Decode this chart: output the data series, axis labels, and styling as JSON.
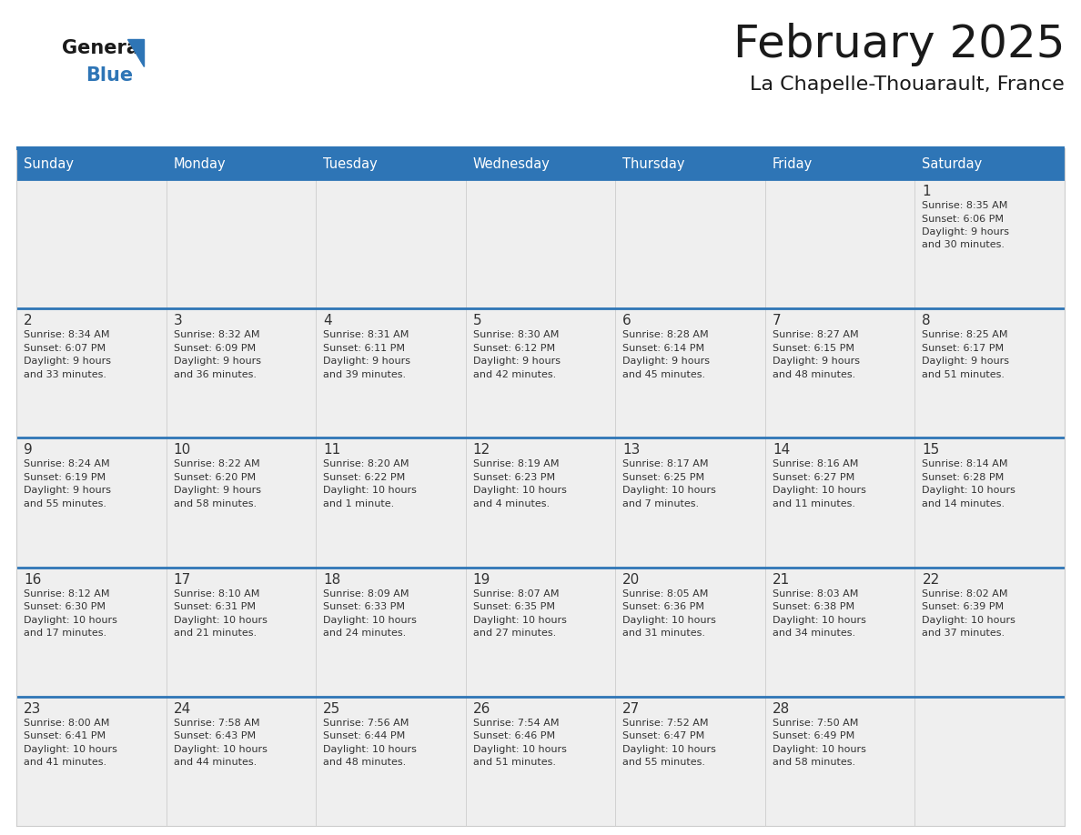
{
  "title": "February 2025",
  "subtitle": "La Chapelle-Thouarault, France",
  "days_of_week": [
    "Sunday",
    "Monday",
    "Tuesday",
    "Wednesday",
    "Thursday",
    "Friday",
    "Saturday"
  ],
  "header_bg": "#2E75B6",
  "header_text": "#FFFFFF",
  "cell_bg": "#EFEFEF",
  "cell_border_color": "#AAAAAA",
  "week_separator_color": "#2E75B6",
  "day_num_color": "#333333",
  "info_text_color": "#333333",
  "title_color": "#1A1A1A",
  "subtitle_color": "#1A1A1A",
  "logo_general_color": "#1A1A1A",
  "logo_blue_color": "#2E75B6",
  "calendar_data": [
    [
      {
        "day": null,
        "info": ""
      },
      {
        "day": null,
        "info": ""
      },
      {
        "day": null,
        "info": ""
      },
      {
        "day": null,
        "info": ""
      },
      {
        "day": null,
        "info": ""
      },
      {
        "day": null,
        "info": ""
      },
      {
        "day": 1,
        "info": "Sunrise: 8:35 AM\nSunset: 6:06 PM\nDaylight: 9 hours\nand 30 minutes."
      }
    ],
    [
      {
        "day": 2,
        "info": "Sunrise: 8:34 AM\nSunset: 6:07 PM\nDaylight: 9 hours\nand 33 minutes."
      },
      {
        "day": 3,
        "info": "Sunrise: 8:32 AM\nSunset: 6:09 PM\nDaylight: 9 hours\nand 36 minutes."
      },
      {
        "day": 4,
        "info": "Sunrise: 8:31 AM\nSunset: 6:11 PM\nDaylight: 9 hours\nand 39 minutes."
      },
      {
        "day": 5,
        "info": "Sunrise: 8:30 AM\nSunset: 6:12 PM\nDaylight: 9 hours\nand 42 minutes."
      },
      {
        "day": 6,
        "info": "Sunrise: 8:28 AM\nSunset: 6:14 PM\nDaylight: 9 hours\nand 45 minutes."
      },
      {
        "day": 7,
        "info": "Sunrise: 8:27 AM\nSunset: 6:15 PM\nDaylight: 9 hours\nand 48 minutes."
      },
      {
        "day": 8,
        "info": "Sunrise: 8:25 AM\nSunset: 6:17 PM\nDaylight: 9 hours\nand 51 minutes."
      }
    ],
    [
      {
        "day": 9,
        "info": "Sunrise: 8:24 AM\nSunset: 6:19 PM\nDaylight: 9 hours\nand 55 minutes."
      },
      {
        "day": 10,
        "info": "Sunrise: 8:22 AM\nSunset: 6:20 PM\nDaylight: 9 hours\nand 58 minutes."
      },
      {
        "day": 11,
        "info": "Sunrise: 8:20 AM\nSunset: 6:22 PM\nDaylight: 10 hours\nand 1 minute."
      },
      {
        "day": 12,
        "info": "Sunrise: 8:19 AM\nSunset: 6:23 PM\nDaylight: 10 hours\nand 4 minutes."
      },
      {
        "day": 13,
        "info": "Sunrise: 8:17 AM\nSunset: 6:25 PM\nDaylight: 10 hours\nand 7 minutes."
      },
      {
        "day": 14,
        "info": "Sunrise: 8:16 AM\nSunset: 6:27 PM\nDaylight: 10 hours\nand 11 minutes."
      },
      {
        "day": 15,
        "info": "Sunrise: 8:14 AM\nSunset: 6:28 PM\nDaylight: 10 hours\nand 14 minutes."
      }
    ],
    [
      {
        "day": 16,
        "info": "Sunrise: 8:12 AM\nSunset: 6:30 PM\nDaylight: 10 hours\nand 17 minutes."
      },
      {
        "day": 17,
        "info": "Sunrise: 8:10 AM\nSunset: 6:31 PM\nDaylight: 10 hours\nand 21 minutes."
      },
      {
        "day": 18,
        "info": "Sunrise: 8:09 AM\nSunset: 6:33 PM\nDaylight: 10 hours\nand 24 minutes."
      },
      {
        "day": 19,
        "info": "Sunrise: 8:07 AM\nSunset: 6:35 PM\nDaylight: 10 hours\nand 27 minutes."
      },
      {
        "day": 20,
        "info": "Sunrise: 8:05 AM\nSunset: 6:36 PM\nDaylight: 10 hours\nand 31 minutes."
      },
      {
        "day": 21,
        "info": "Sunrise: 8:03 AM\nSunset: 6:38 PM\nDaylight: 10 hours\nand 34 minutes."
      },
      {
        "day": 22,
        "info": "Sunrise: 8:02 AM\nSunset: 6:39 PM\nDaylight: 10 hours\nand 37 minutes."
      }
    ],
    [
      {
        "day": 23,
        "info": "Sunrise: 8:00 AM\nSunset: 6:41 PM\nDaylight: 10 hours\nand 41 minutes."
      },
      {
        "day": 24,
        "info": "Sunrise: 7:58 AM\nSunset: 6:43 PM\nDaylight: 10 hours\nand 44 minutes."
      },
      {
        "day": 25,
        "info": "Sunrise: 7:56 AM\nSunset: 6:44 PM\nDaylight: 10 hours\nand 48 minutes."
      },
      {
        "day": 26,
        "info": "Sunrise: 7:54 AM\nSunset: 6:46 PM\nDaylight: 10 hours\nand 51 minutes."
      },
      {
        "day": 27,
        "info": "Sunrise: 7:52 AM\nSunset: 6:47 PM\nDaylight: 10 hours\nand 55 minutes."
      },
      {
        "day": 28,
        "info": "Sunrise: 7:50 AM\nSunset: 6:49 PM\nDaylight: 10 hours\nand 58 minutes."
      },
      {
        "day": null,
        "info": ""
      }
    ]
  ]
}
